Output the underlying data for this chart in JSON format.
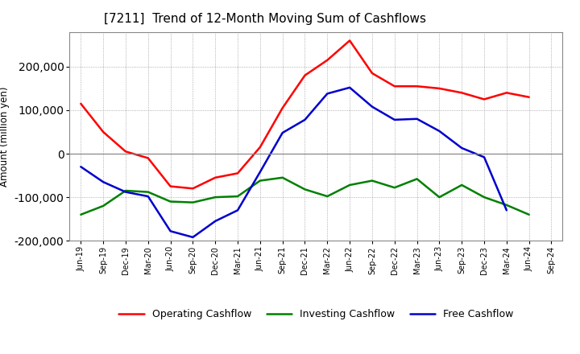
{
  "title": "[7211]  Trend of 12-Month Moving Sum of Cashflows",
  "ylabel": "Amount (million yen)",
  "background_color": "#ffffff",
  "plot_background": "#ffffff",
  "grid_color": "#999999",
  "ylim": [
    -200000,
    280000
  ],
  "yticks": [
    -200000,
    -100000,
    0,
    100000,
    200000
  ],
  "x_labels": [
    "Jun-19",
    "Sep-19",
    "Dec-19",
    "Mar-20",
    "Jun-20",
    "Sep-20",
    "Dec-20",
    "Mar-21",
    "Jun-21",
    "Sep-21",
    "Dec-21",
    "Mar-22",
    "Jun-22",
    "Sep-22",
    "Dec-22",
    "Mar-23",
    "Jun-23",
    "Sep-23",
    "Dec-23",
    "Mar-24",
    "Jun-24",
    "Sep-24"
  ],
  "operating": [
    115000,
    50000,
    5000,
    -10000,
    -75000,
    -80000,
    -55000,
    -45000,
    15000,
    105000,
    180000,
    215000,
    260000,
    185000,
    155000,
    155000,
    150000,
    140000,
    125000,
    140000,
    130000,
    null
  ],
  "investing": [
    -140000,
    -120000,
    -85000,
    -88000,
    -110000,
    -112000,
    -100000,
    -98000,
    -62000,
    -55000,
    -82000,
    -98000,
    -72000,
    -62000,
    -78000,
    -58000,
    -100000,
    -72000,
    -100000,
    -118000,
    -140000,
    null
  ],
  "free": [
    -30000,
    -65000,
    -88000,
    -98000,
    -178000,
    -192000,
    -155000,
    -130000,
    -42000,
    48000,
    78000,
    138000,
    152000,
    108000,
    78000,
    80000,
    52000,
    13000,
    -8000,
    -130000,
    null,
    null
  ],
  "operating_color": "#ff0000",
  "investing_color": "#008000",
  "free_color": "#0000cc",
  "line_width": 1.8,
  "legend_labels": [
    "Operating Cashflow",
    "Investing Cashflow",
    "Free Cashflow"
  ]
}
